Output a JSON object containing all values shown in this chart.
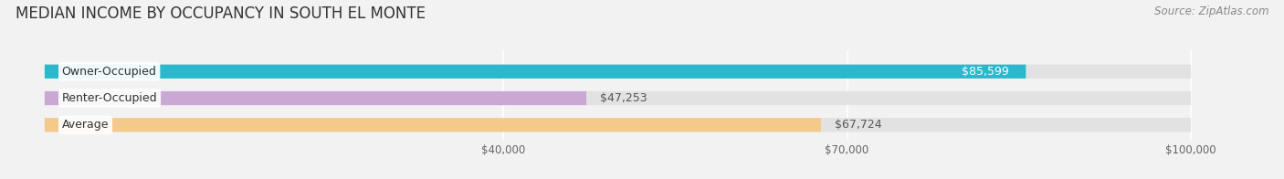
{
  "title": "MEDIAN INCOME BY OCCUPANCY IN SOUTH EL MONTE",
  "source": "Source: ZipAtlas.com",
  "categories": [
    "Owner-Occupied",
    "Renter-Occupied",
    "Average"
  ],
  "values": [
    85599,
    47253,
    67724
  ],
  "bar_colors": [
    "#29b8cc",
    "#c9a8d4",
    "#f5c98a"
  ],
  "bar_labels": [
    "$85,599",
    "$47,253",
    "$67,724"
  ],
  "xlim": [
    0,
    107000
  ],
  "axis_max": 100000,
  "xticks": [
    40000,
    70000,
    100000
  ],
  "xtick_labels": [
    "$40,000",
    "$70,000",
    "$100,000"
  ],
  "background_color": "#f2f2f2",
  "bar_bg_color": "#e2e2e2",
  "title_fontsize": 12,
  "source_fontsize": 8.5,
  "label_fontsize": 9,
  "cat_fontsize": 9,
  "tick_fontsize": 8.5,
  "bar_label_color_owner": "#ffffff",
  "bar_label_color_renter": "#666666",
  "bar_label_color_avg": "#666666",
  "bar_label_inside": [
    true,
    false,
    false
  ]
}
